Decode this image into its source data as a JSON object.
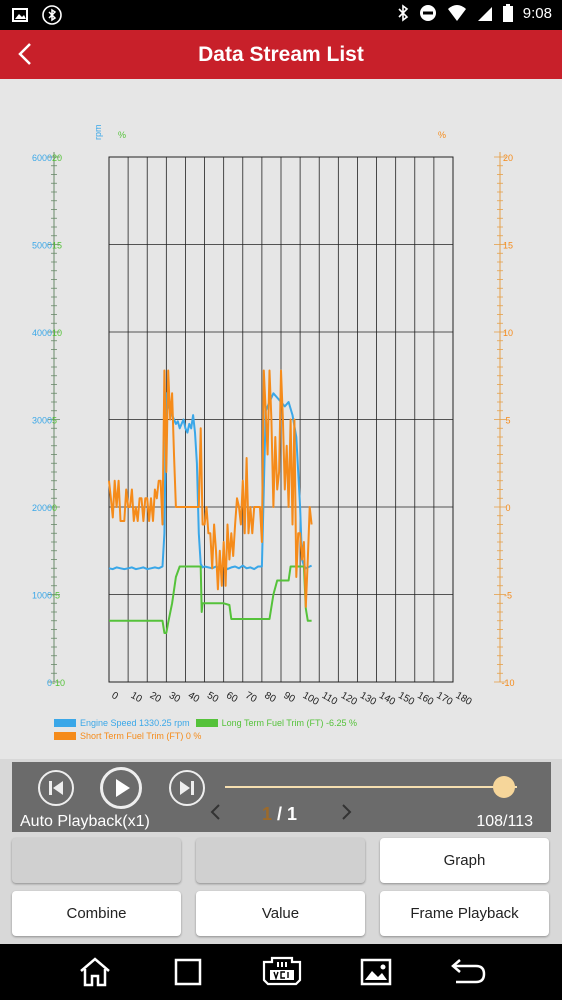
{
  "status": {
    "time": "9:08"
  },
  "header": {
    "title": "Data Stream List"
  },
  "chart_data": {
    "type": "line",
    "x_ticks": [
      "0",
      "10",
      "20",
      "30",
      "40",
      "50",
      "60",
      "70",
      "80",
      "90",
      "100",
      "110",
      "120",
      "130",
      "140",
      "150",
      "160",
      "170",
      "180"
    ],
    "left_unit_1": "rpm",
    "left_unit_2": "%",
    "right_unit": "%",
    "left_ticks": [
      "0-10",
      "1000-5",
      "2000 0",
      "3000 5",
      "4000 10",
      "5000 15",
      "6000 20"
    ],
    "left_ticks_rpm": [
      "0",
      "1000",
      "2000",
      "3000",
      "4000",
      "5000",
      "6000"
    ],
    "left_ticks_pct": [
      "-10",
      "-5",
      "0",
      "5",
      "10",
      "15",
      "20"
    ],
    "right_ticks": [
      "-10",
      "-5",
      "0",
      "5",
      "10",
      "15",
      "20"
    ],
    "xlim": [
      0,
      180
    ],
    "series": [
      {
        "name": "Engine Speed",
        "color": "#3aa7e8",
        "axis": "rpm",
        "x": [
          0,
          2,
          4,
          6,
          8,
          10,
          12,
          14,
          16,
          18,
          20,
          22,
          24,
          26,
          28,
          29,
          30,
          31,
          32,
          33,
          34,
          35,
          36,
          37,
          38,
          39,
          40,
          41,
          42,
          43,
          44,
          45,
          46,
          47,
          48,
          49,
          50,
          52,
          54,
          56,
          58,
          60,
          62,
          64,
          66,
          68,
          70,
          72,
          74,
          76,
          78,
          80,
          82,
          84,
          86,
          88,
          90,
          92,
          94,
          96,
          98,
          100,
          101,
          102,
          103,
          104,
          105,
          106
        ],
        "y": [
          1300,
          1290,
          1310,
          1300,
          1290,
          1300,
          1310,
          1290,
          1300,
          1310,
          1290,
          1300,
          1310,
          1300,
          1320,
          1700,
          3300,
          3200,
          3100,
          3050,
          3000,
          2950,
          2980,
          2900,
          2950,
          3000,
          2900,
          2850,
          2950,
          2900,
          3050,
          2850,
          2500,
          1700,
          1350,
          1310,
          1320,
          1310,
          1300,
          1320,
          1300,
          1330,
          1290,
          1310,
          1320,
          1300,
          1330,
          1300,
          1310,
          1290,
          1320,
          1320,
          3100,
          3200,
          3300,
          3250,
          3200,
          3150,
          3200,
          3050,
          2800,
          2000,
          1400,
          1330,
          1300,
          1310,
          1320,
          1330
        ]
      },
      {
        "name": "Long Term Fuel Trim (FT)",
        "color": "#55c23a",
        "axis": "pct",
        "x": [
          0,
          10,
          20,
          26,
          28,
          29,
          30,
          31,
          33,
          35,
          37,
          40,
          43,
          46,
          48,
          48.5,
          49,
          50,
          52,
          55,
          60,
          63,
          64,
          65,
          70,
          80,
          84,
          86,
          88,
          90,
          94,
          95,
          96,
          100,
          102,
          103,
          104,
          105,
          106
        ],
        "y": [
          -6.5,
          -6.5,
          -6.5,
          -6.5,
          -6.5,
          -7.2,
          -7.2,
          -6.6,
          -5.5,
          -4.0,
          -3.4,
          -3.4,
          -3.4,
          -3.4,
          -3.4,
          -6.0,
          -5.5,
          -5.5,
          -5.5,
          -5.5,
          -5.5,
          -5.6,
          -6.4,
          -6.4,
          -6.4,
          -6.4,
          -6.4,
          -5.0,
          -4.2,
          -4.2,
          -4.2,
          -3.4,
          -3.4,
          -3.4,
          -3.4,
          -5.8,
          -6.5,
          -6.5,
          -6.5
        ]
      },
      {
        "name": "Short Term Fuel Trim (FT)",
        "color": "#f58b1a",
        "axis": "pct",
        "x": [
          0,
          1,
          2,
          3,
          4,
          5,
          6,
          7,
          8,
          9,
          10,
          11,
          12,
          13,
          14,
          15,
          16,
          17,
          18,
          19,
          20,
          21,
          22,
          23,
          24,
          25,
          26,
          27,
          28,
          29,
          30,
          31,
          32,
          33,
          34,
          35,
          36,
          37,
          38,
          39,
          40,
          41,
          42,
          43,
          44,
          45,
          46,
          47,
          48,
          49,
          50,
          51,
          52,
          53,
          54,
          55,
          56,
          57,
          58,
          59,
          60,
          61,
          62,
          63,
          64,
          65,
          66,
          67,
          68,
          69,
          70,
          71,
          72,
          73,
          74,
          75,
          76,
          77,
          78,
          79,
          80,
          81,
          82,
          83,
          84,
          85,
          86,
          87,
          88,
          89,
          90,
          91,
          92,
          93,
          94,
          95,
          96,
          97,
          98,
          99,
          100,
          101,
          102,
          103,
          104,
          105,
          106
        ],
        "y": [
          1.5,
          0.5,
          -0.6,
          1.5,
          0,
          1.5,
          -0.8,
          -0.8,
          -0.8,
          1,
          0,
          0,
          1,
          -0.8,
          0,
          -0.8,
          0.5,
          0.5,
          -0.8,
          0.5,
          0.5,
          -0.8,
          0.5,
          -0.8,
          1,
          0.5,
          1.5,
          1.5,
          -1,
          7.8,
          2,
          7.8,
          5,
          6.5,
          3,
          0,
          0,
          0,
          0,
          0,
          0,
          0,
          0,
          0,
          0,
          0,
          0,
          0,
          4.5,
          -1,
          -1,
          0,
          -1.5,
          -1.5,
          -3.5,
          -1,
          -2.5,
          -4.7,
          -2.5,
          -4.5,
          -2,
          -4.5,
          -1,
          -3,
          -1.5,
          -2.8,
          -1,
          0.5,
          0,
          -1,
          1.5,
          -1.5,
          2.8,
          -1.5,
          0,
          -1.5,
          0,
          0,
          0,
          0,
          -2,
          7.8,
          5.5,
          3,
          7.8,
          5,
          0,
          4,
          1,
          2,
          7.8,
          5,
          1,
          3.5,
          0,
          5,
          -1,
          5,
          -4,
          -1.5,
          -1.5,
          -3,
          -2,
          -5.7,
          -3,
          0,
          -1
        ]
      }
    ],
    "legend": [
      {
        "label": "Engine Speed 1330.25 rpm",
        "color": "#3aa7e8"
      },
      {
        "label": "Long Term Fuel Trim (FT) -6.25 %",
        "color": "#55c23a"
      },
      {
        "label": "Short Term Fuel Trim (FT) 0 %",
        "color": "#f58b1a"
      }
    ]
  },
  "player": {
    "mode_label": "Auto Playback(x1)",
    "page_current": "1",
    "page_sep": " / ",
    "page_total": "1",
    "frames": "108/113",
    "progress": 0.956
  },
  "buttons": {
    "graph": "Graph",
    "combine": "Combine",
    "value": "Value",
    "frame_playback": "Frame Playback"
  }
}
